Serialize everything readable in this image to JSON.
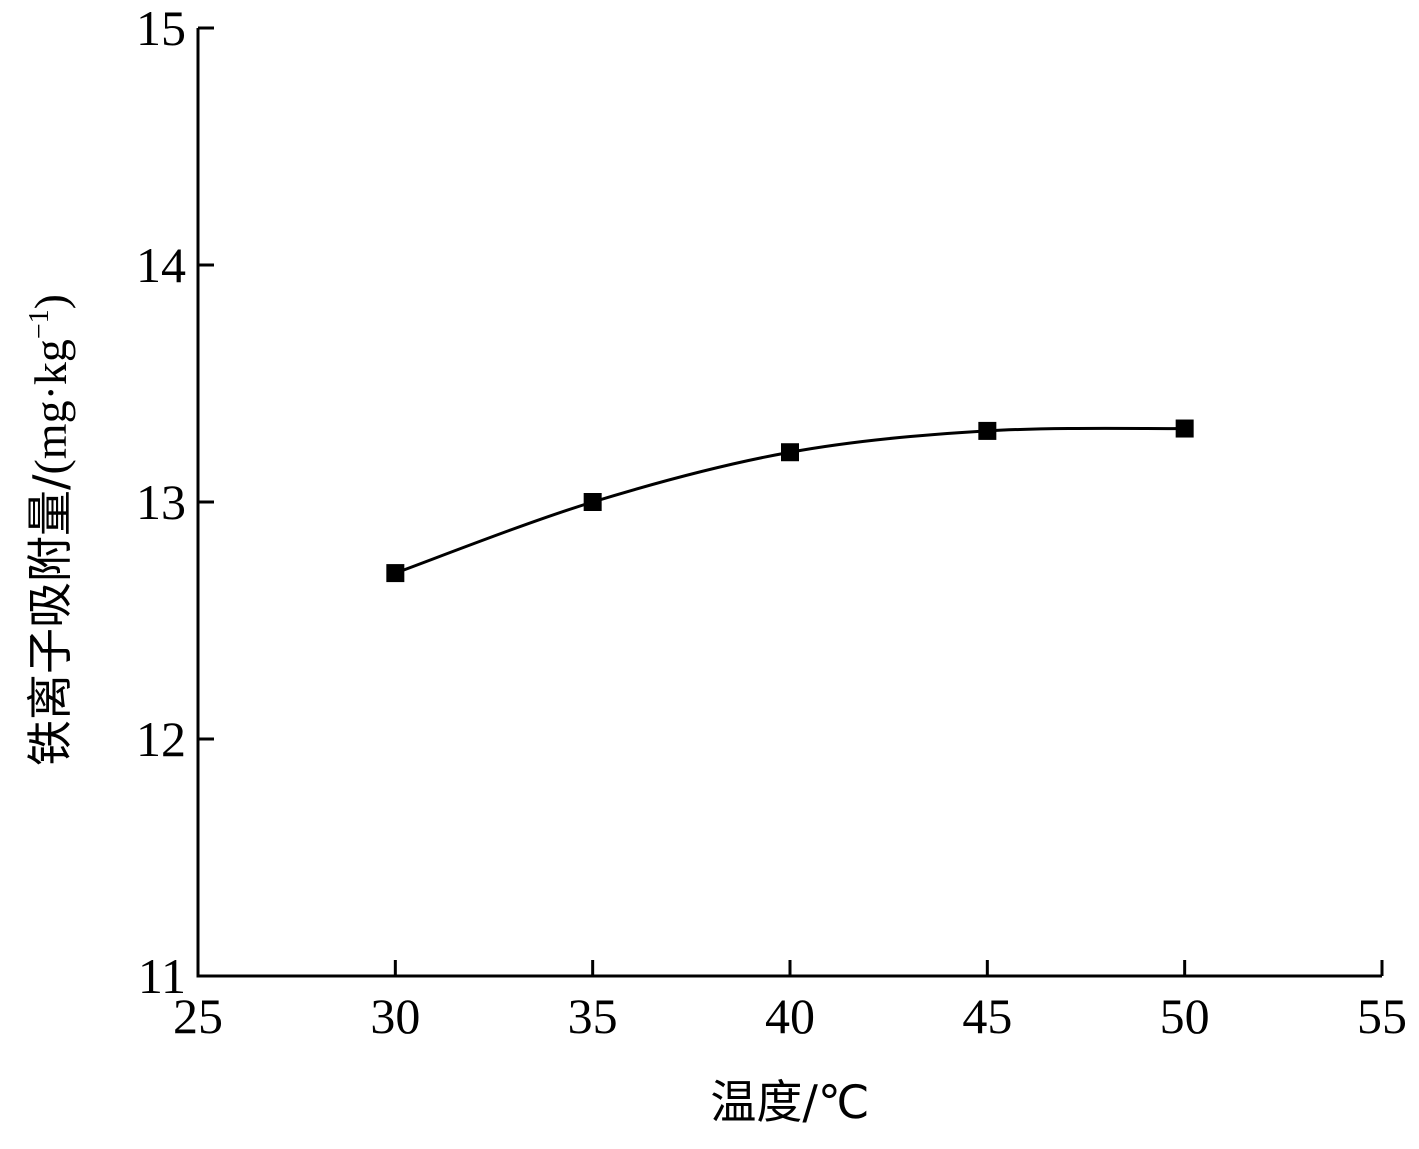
{
  "chart_data": {
    "type": "line",
    "title": "",
    "xlabel": "温度/℃",
    "ylabel_main": "铁离子吸附量/",
    "ylabel_unit": "(mg·kg",
    "ylabel_exp": "−1",
    "ylabel_close": ")",
    "xlim": [
      25,
      55
    ],
    "ylim": [
      11,
      15
    ],
    "xticks": [
      25,
      30,
      35,
      40,
      45,
      50,
      55
    ],
    "yticks": [
      11,
      12,
      13,
      14,
      15
    ],
    "grid": false,
    "legend": "none",
    "line_color": "#000000",
    "marker": "square",
    "series": [
      {
        "x": [
          30,
          35,
          40,
          45,
          50
        ],
        "y": [
          12.7,
          13.0,
          13.21,
          13.3,
          13.31
        ]
      }
    ]
  }
}
